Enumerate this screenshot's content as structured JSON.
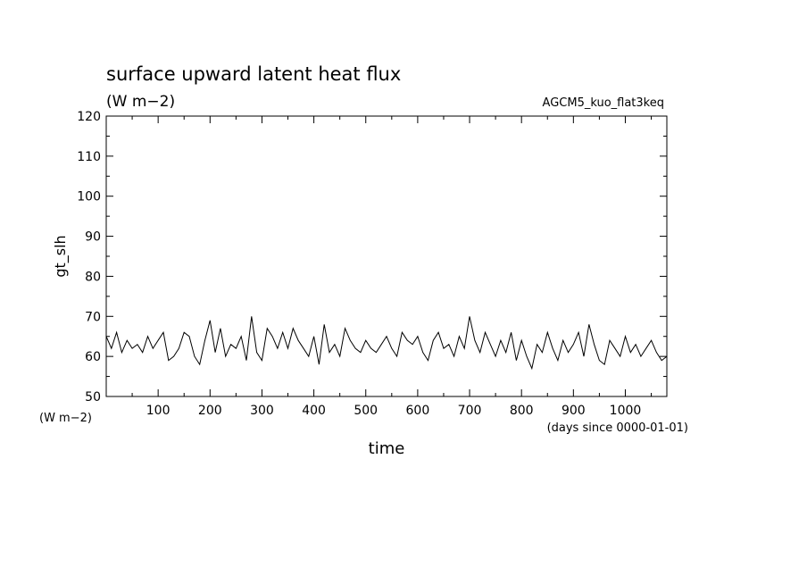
{
  "chart_data": {
    "type": "line",
    "title": "surface upward latent heat flux",
    "subtitle_units": "(W m−2)",
    "experiment": "AGCM5_kuo_flat3keq",
    "ylabel": "gt_slh",
    "ylabel_units": "(W m−2)",
    "xlabel": "time",
    "xlabel_units": "(days since 0000-01-01)",
    "xlim": [
      0,
      1080
    ],
    "ylim": [
      50,
      120
    ],
    "x_ticks": [
      "100",
      "200",
      "300",
      "400",
      "500",
      "600",
      "700",
      "800",
      "900",
      "1000"
    ],
    "y_ticks": [
      "50",
      "60",
      "70",
      "80",
      "90",
      "100",
      "110",
      "120"
    ],
    "grid": false,
    "series": [
      {
        "x": [
          0,
          10,
          20,
          30,
          40,
          50,
          60,
          70,
          80,
          90,
          100,
          110,
          120,
          130,
          140,
          150,
          160,
          170,
          180,
          190,
          200,
          210,
          220,
          230,
          240,
          250,
          260,
          270,
          280,
          290,
          300,
          310,
          320,
          330,
          340,
          350,
          360,
          370,
          380,
          390,
          400,
          410,
          420,
          430,
          440,
          450,
          460,
          470,
          480,
          490,
          500,
          510,
          520,
          530,
          540,
          550,
          560,
          570,
          580,
          590,
          600,
          610,
          620,
          630,
          640,
          650,
          660,
          670,
          680,
          690,
          700,
          710,
          720,
          730,
          740,
          750,
          760,
          770,
          780,
          790,
          800,
          810,
          820,
          830,
          840,
          850,
          860,
          870,
          880,
          890,
          900,
          910,
          920,
          930,
          940,
          950,
          960,
          970,
          980,
          990,
          1000,
          1010,
          1020,
          1030,
          1040,
          1050,
          1060,
          1070,
          1080
        ],
        "values": [
          65,
          62,
          66,
          61,
          64,
          62,
          63,
          61,
          65,
          62,
          64,
          66,
          59,
          60,
          62,
          66,
          65,
          60,
          58,
          64,
          69,
          61,
          67,
          60,
          63,
          62,
          65,
          59,
          70,
          61,
          59,
          67,
          65,
          62,
          66,
          62,
          67,
          64,
          62,
          60,
          65,
          58,
          68,
          61,
          63,
          60,
          67,
          64,
          62,
          61,
          64,
          62,
          61,
          63,
          65,
          62,
          60,
          66,
          64,
          63,
          65,
          61,
          59,
          64,
          66,
          62,
          63,
          60,
          65,
          62,
          70,
          64,
          61,
          66,
          63,
          60,
          64,
          61,
          66,
          59,
          64,
          60,
          57,
          63,
          61,
          66,
          62,
          59,
          64,
          61,
          63,
          66,
          60,
          68,
          63,
          59,
          58,
          64,
          62,
          60,
          65,
          61,
          63,
          60,
          62,
          64,
          61,
          59,
          60
        ]
      }
    ]
  }
}
